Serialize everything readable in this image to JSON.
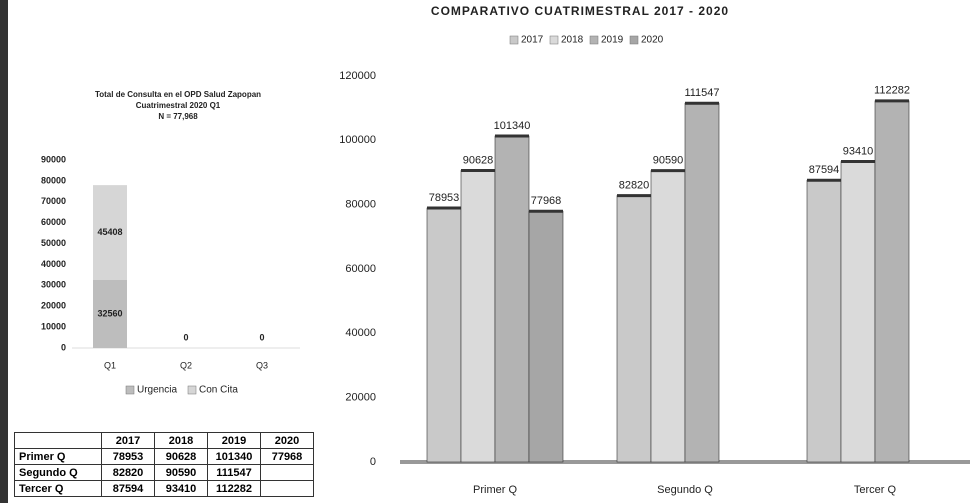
{
  "chart_data": [
    {
      "type": "bar",
      "stacked": true,
      "title": "Total de Consulta en el OPD Salud Zapopan",
      "subtitle": "Cuatrimestral 2020 Q1",
      "annotation": "N = 77,968",
      "categories": [
        "Q1",
        "Q2",
        "Q3"
      ],
      "series": [
        {
          "name": "Urgencia",
          "color": "#bdbdbd",
          "values": [
            32560,
            0,
            0
          ]
        },
        {
          "name": "Con Cita",
          "color": "#d6d6d6",
          "values": [
            45408,
            null,
            null
          ]
        }
      ],
      "ylim": [
        0,
        90000
      ],
      "yticks": [
        0,
        10000,
        20000,
        30000,
        40000,
        50000,
        60000,
        70000,
        80000,
        90000
      ],
      "legend": "bottom"
    },
    {
      "type": "bar",
      "stacked": false,
      "title": "COMPARATIVO CUATRIMESTRAL 2017 - 2020",
      "categories": [
        "Primer Q",
        "Segundo Q",
        "Tercer Q"
      ],
      "series": [
        {
          "name": "2017",
          "color": "#c9c9c9",
          "values": [
            78953,
            82820,
            87594
          ]
        },
        {
          "name": "2018",
          "color": "#dadada",
          "values": [
            90628,
            90590,
            93410
          ]
        },
        {
          "name": "2019",
          "color": "#b3b3b3",
          "values": [
            101340,
            111547,
            112282
          ]
        },
        {
          "name": "2020",
          "color": "#a6a6a6",
          "values": [
            77968,
            null,
            null
          ]
        }
      ],
      "ylim": [
        0,
        120000
      ],
      "yticks": [
        0,
        20000,
        40000,
        60000,
        80000,
        100000,
        120000
      ],
      "legend": "top"
    }
  ],
  "table": {
    "columns": [
      "2017",
      "2018",
      "2019",
      "2020"
    ],
    "rows": [
      {
        "label": "Primer Q",
        "cells": [
          "78953",
          "90628",
          "101340",
          "77968"
        ]
      },
      {
        "label": "Segundo Q",
        "cells": [
          "82820",
          "90590",
          "111547"
        ]
      },
      {
        "label": "Tercer Q",
        "cells": [
          "87594",
          "93410",
          "112282"
        ]
      }
    ]
  }
}
